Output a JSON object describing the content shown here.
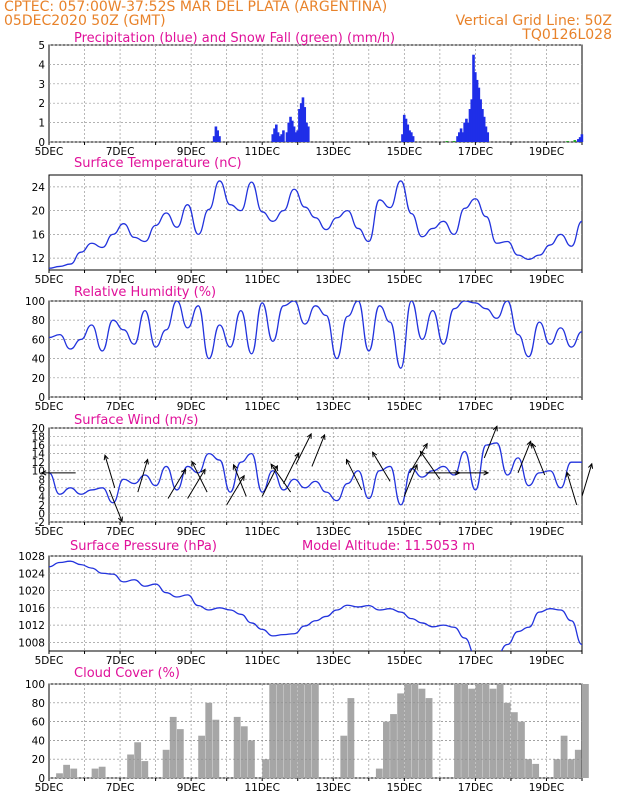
{
  "header": {
    "line1_left": "CPTEC:  057:00W-37:52S  MAR DEL PLATA (ARGENTINA)",
    "line2_left": "05DEC2020 50Z (GMT)",
    "line2_right": "Vertical Grid Line: 50Z",
    "line3_right": "TQ0126L028"
  },
  "colors": {
    "header": "#e8822a",
    "title": "#e0119a",
    "precip": "#1f2ee8",
    "snow": "#1ea51e",
    "line": "#2233dd",
    "cloud": "#a6a6a6"
  },
  "x_axis": {
    "labels": [
      "5DEC",
      "7DEC",
      "9DEC",
      "11DEC",
      "13DEC",
      "15DEC",
      "17DEC",
      "19DEC"
    ],
    "start_day": 5,
    "end_day": 20
  },
  "chart_data": [
    {
      "type": "bar",
      "title": "Precipitation (blue) and Snow Fall (green) (mm/h)",
      "ylim": [
        0,
        5
      ],
      "yticks": [
        0,
        1,
        2,
        3,
        4,
        5
      ],
      "series": [
        {
          "name": "Precipitation",
          "values": [
            [
              9.65,
              0.3
            ],
            [
              9.7,
              0.8
            ],
            [
              9.75,
              0.6
            ],
            [
              9.8,
              0.3
            ],
            [
              11.3,
              0.4
            ],
            [
              11.35,
              0.7
            ],
            [
              11.4,
              0.9
            ],
            [
              11.45,
              0.5
            ],
            [
              11.5,
              0.3
            ],
            [
              11.55,
              0.4
            ],
            [
              11.6,
              0.6
            ],
            [
              11.7,
              0.5
            ],
            [
              11.75,
              1.0
            ],
            [
              11.8,
              1.3
            ],
            [
              11.85,
              1.1
            ],
            [
              11.9,
              0.8
            ],
            [
              11.95,
              0.5
            ],
            [
              12.0,
              0.6
            ],
            [
              12.05,
              1.7
            ],
            [
              12.1,
              2.0
            ],
            [
              12.15,
              2.3
            ],
            [
              12.2,
              1.8
            ],
            [
              12.25,
              1.0
            ],
            [
              12.3,
              0.8
            ],
            [
              14.95,
              0.4
            ],
            [
              15.0,
              1.4
            ],
            [
              15.05,
              1.2
            ],
            [
              15.1,
              0.9
            ],
            [
              15.15,
              0.6
            ],
            [
              15.2,
              0.5
            ],
            [
              15.25,
              0.3
            ],
            [
              16.5,
              0.3
            ],
            [
              16.55,
              0.5
            ],
            [
              16.6,
              0.7
            ],
            [
              16.65,
              0.5
            ],
            [
              16.7,
              1.0
            ],
            [
              16.75,
              1.2
            ],
            [
              16.8,
              1.0
            ],
            [
              16.85,
              1.7
            ],
            [
              16.9,
              2.2
            ],
            [
              16.95,
              4.5
            ],
            [
              17.0,
              3.6
            ],
            [
              17.05,
              3.2
            ],
            [
              17.1,
              2.8
            ],
            [
              17.15,
              2.2
            ],
            [
              17.2,
              1.7
            ],
            [
              17.25,
              1.3
            ],
            [
              17.3,
              0.8
            ],
            [
              17.35,
              0.5
            ],
            [
              19.9,
              0.15
            ],
            [
              19.95,
              0.25
            ],
            [
              20.0,
              0.4
            ]
          ]
        },
        {
          "name": "Snow Fall",
          "values": [
            [
              16.2,
              0.05
            ],
            [
              16.4,
              0.05
            ],
            [
              19.6,
              0.05
            ],
            [
              19.8,
              0.1
            ]
          ]
        }
      ]
    },
    {
      "type": "line",
      "title": "Surface Temperature (nC)",
      "ylim": [
        10,
        26
      ],
      "yticks": [
        12,
        16,
        20,
        24
      ],
      "x": [
        5.0,
        5.3,
        5.6,
        5.9,
        6.2,
        6.5,
        6.8,
        7.1,
        7.4,
        7.7,
        8.0,
        8.3,
        8.6,
        8.9,
        9.2,
        9.5,
        9.8,
        10.1,
        10.4,
        10.7,
        11.0,
        11.3,
        11.6,
        11.9,
        12.2,
        12.5,
        12.8,
        13.1,
        13.4,
        13.7,
        14.0,
        14.3,
        14.6,
        14.9,
        15.2,
        15.5,
        15.8,
        16.1,
        16.4,
        16.7,
        17.0,
        17.3,
        17.6,
        17.9,
        18.2,
        18.5,
        18.8,
        19.1,
        19.4,
        19.7,
        20.0
      ],
      "values": [
        10.3,
        10.6,
        11.0,
        13.0,
        14.5,
        13.8,
        16.0,
        17.8,
        15.5,
        14.8,
        17.5,
        19.6,
        17.2,
        21.0,
        16.0,
        20.2,
        25.0,
        21.0,
        20.0,
        24.8,
        19.8,
        18.2,
        20.0,
        23.6,
        20.6,
        18.8,
        16.8,
        18.8,
        20.0,
        17.0,
        14.8,
        21.8,
        20.5,
        25.0,
        19.5,
        15.6,
        17.0,
        18.2,
        16.0,
        20.4,
        22.0,
        19.0,
        14.5,
        14.8,
        12.5,
        11.8,
        12.5,
        14.2,
        16.0,
        14.0,
        18.2
      ]
    },
    {
      "type": "line",
      "title": "Relative Humidity (%)",
      "ylim": [
        0,
        100
      ],
      "yticks": [
        0,
        20,
        40,
        60,
        80,
        100
      ],
      "x": [
        5.0,
        5.3,
        5.6,
        5.9,
        6.2,
        6.5,
        6.8,
        7.1,
        7.4,
        7.7,
        8.0,
        8.3,
        8.6,
        8.9,
        9.2,
        9.5,
        9.8,
        10.1,
        10.4,
        10.7,
        11.0,
        11.3,
        11.6,
        11.9,
        12.2,
        12.5,
        12.8,
        13.1,
        13.4,
        13.7,
        14.0,
        14.3,
        14.6,
        14.9,
        15.2,
        15.5,
        15.8,
        16.1,
        16.4,
        16.7,
        17.0,
        17.3,
        17.6,
        17.9,
        18.2,
        18.5,
        18.8,
        19.1,
        19.4,
        19.7,
        20.0
      ],
      "values": [
        62,
        65,
        50,
        60,
        75,
        48,
        80,
        70,
        55,
        90,
        52,
        70,
        100,
        72,
        95,
        40,
        75,
        52,
        90,
        45,
        98,
        58,
        95,
        100,
        76,
        95,
        85,
        40,
        84,
        100,
        48,
        95,
        78,
        30,
        100,
        60,
        90,
        55,
        92,
        100,
        98,
        92,
        82,
        100,
        65,
        42,
        78,
        55,
        72,
        52,
        68
      ]
    },
    {
      "type": "line",
      "title": "Surface Wind (m/s)",
      "ylim": [
        -2,
        20
      ],
      "yticks": [
        -2,
        0,
        2,
        4,
        6,
        8,
        10,
        12,
        14,
        16,
        18,
        20
      ],
      "x": [
        5.0,
        5.3,
        5.6,
        5.9,
        6.2,
        6.5,
        6.8,
        7.1,
        7.4,
        7.7,
        8.0,
        8.3,
        8.6,
        8.9,
        9.2,
        9.5,
        9.8,
        10.1,
        10.4,
        10.7,
        11.0,
        11.3,
        11.6,
        11.9,
        12.2,
        12.5,
        12.8,
        13.1,
        13.4,
        13.7,
        14.0,
        14.3,
        14.6,
        14.9,
        15.2,
        15.5,
        15.8,
        16.1,
        16.4,
        16.7,
        17.0,
        17.3,
        17.6,
        17.9,
        18.2,
        18.5,
        18.8,
        19.1,
        19.4,
        19.7,
        20.0
      ],
      "values": [
        9.5,
        4.5,
        6.0,
        4.5,
        5.5,
        6.0,
        2.5,
        8.0,
        7.0,
        9.0,
        6.5,
        11.0,
        5.5,
        11.0,
        9.5,
        14.0,
        12.5,
        5.0,
        12.0,
        14.0,
        5.0,
        10.0,
        5.5,
        8.0,
        6.0,
        7.5,
        5.0,
        3.0,
        7.0,
        10.0,
        3.5,
        10.0,
        11.0,
        2.0,
        10.5,
        8.5,
        10.0,
        11.0,
        9.0,
        14.5,
        5.5,
        16.0,
        16.5,
        9.0,
        13.0,
        6.5,
        9.5,
        10.0,
        6.0,
        12.0,
        12.0
      ],
      "arrows": [
        [
          5.75,
          9.5,
          -1,
          0
        ],
        [
          6.7,
          5.5,
          0.4,
          -1
        ],
        [
          6.85,
          6,
          -0.3,
          1
        ],
        [
          7.5,
          5,
          0.3,
          1
        ],
        [
          8.35,
          3.5,
          0.6,
          1
        ],
        [
          8.9,
          3.5,
          0.6,
          1
        ],
        [
          9.45,
          5,
          -0.5,
          1
        ],
        [
          10.0,
          2,
          0.6,
          1
        ],
        [
          10.55,
          4,
          -0.4,
          1
        ],
        [
          11.0,
          4,
          0.5,
          1
        ],
        [
          11.6,
          7,
          0.5,
          1
        ],
        [
          11.8,
          5,
          -0.7,
          1
        ],
        [
          11.95,
          11.5,
          0.5,
          1
        ],
        [
          12.4,
          11,
          0.4,
          1
        ],
        [
          13.8,
          5.5,
          -0.5,
          1
        ],
        [
          14.6,
          7.5,
          -0.6,
          1
        ],
        [
          15.0,
          4,
          0.4,
          1
        ],
        [
          15.15,
          9.5,
          0.6,
          1
        ],
        [
          15.6,
          9.5,
          1,
          0
        ],
        [
          16.0,
          8,
          -0.7,
          1
        ],
        [
          16.4,
          9.5,
          1,
          0
        ],
        [
          17.25,
          13,
          0.4,
          1
        ],
        [
          18.2,
          9.5,
          0.4,
          1
        ],
        [
          18.95,
          9,
          -0.4,
          1
        ],
        [
          19.85,
          2,
          -0.3,
          1
        ],
        [
          20.0,
          4,
          0.3,
          1
        ]
      ]
    },
    {
      "type": "line",
      "title": "Surface Pressure (hPa)",
      "subtitle": "Model Altitude: 11.5053 m",
      "ylim": [
        1006,
        1028
      ],
      "yticks": [
        1008,
        1012,
        1016,
        1020,
        1024,
        1028
      ],
      "x": [
        5.0,
        5.3,
        5.6,
        5.9,
        6.2,
        6.5,
        6.8,
        7.1,
        7.4,
        7.7,
        8.0,
        8.3,
        8.6,
        8.9,
        9.2,
        9.5,
        9.8,
        10.1,
        10.4,
        10.7,
        11.0,
        11.3,
        11.6,
        11.9,
        12.2,
        12.5,
        12.8,
        13.1,
        13.4,
        13.7,
        14.0,
        14.3,
        14.6,
        14.9,
        15.2,
        15.5,
        15.8,
        16.1,
        16.4,
        16.7,
        17.0,
        17.3,
        17.6,
        17.9,
        18.2,
        18.5,
        18.8,
        19.1,
        19.4,
        19.7,
        20.0
      ],
      "values": [
        1025.5,
        1026.5,
        1026.8,
        1026.0,
        1025.2,
        1024.0,
        1023.8,
        1022.0,
        1022.5,
        1021.0,
        1021.5,
        1019.5,
        1018.5,
        1019.0,
        1016.5,
        1015.5,
        1016.0,
        1015.5,
        1014.5,
        1012.5,
        1011.0,
        1009.5,
        1009.8,
        1010.0,
        1011.8,
        1013.0,
        1014.0,
        1015.5,
        1016.6,
        1016.2,
        1016.5,
        1015.5,
        1015.8,
        1015.0,
        1013.5,
        1012.5,
        1011.6,
        1012.0,
        1011.5,
        1009.0,
        1005.0,
        1003.5,
        1005.0,
        1007.5,
        1010.5,
        1011.5,
        1015.0,
        1015.8,
        1015.5,
        1013.0,
        1007.5
      ]
    },
    {
      "type": "area",
      "title": "Cloud Cover (%)",
      "ylim": [
        0,
        100
      ],
      "yticks": [
        0,
        20,
        40,
        60,
        80,
        100
      ],
      "x": [
        5.0,
        5.2,
        5.4,
        5.6,
        5.8,
        6.0,
        6.2,
        6.4,
        6.6,
        6.8,
        7.0,
        7.2,
        7.4,
        7.6,
        7.8,
        8.0,
        8.2,
        8.4,
        8.6,
        8.8,
        9.0,
        9.2,
        9.4,
        9.6,
        9.8,
        10.0,
        10.2,
        10.4,
        10.6,
        10.8,
        11.0,
        11.2,
        11.4,
        11.6,
        11.8,
        12.0,
        12.2,
        12.4,
        12.6,
        12.8,
        13.0,
        13.2,
        13.4,
        13.6,
        13.8,
        14.0,
        14.2,
        14.4,
        14.6,
        14.8,
        15.0,
        15.2,
        15.4,
        15.6,
        15.8,
        16.0,
        16.2,
        16.4,
        16.6,
        16.8,
        17.0,
        17.2,
        17.4,
        17.6,
        17.8,
        18.0,
        18.2,
        18.4,
        18.6,
        18.8,
        19.0,
        19.2,
        19.4,
        19.6,
        19.8,
        20.0
      ],
      "values": [
        0,
        5,
        14,
        10,
        0,
        0,
        10,
        12,
        0,
        0,
        0,
        25,
        38,
        18,
        0,
        0,
        30,
        65,
        52,
        0,
        0,
        45,
        80,
        62,
        0,
        0,
        65,
        55,
        40,
        0,
        20,
        100,
        100,
        100,
        100,
        100,
        100,
        100,
        0,
        0,
        0,
        45,
        85,
        0,
        0,
        0,
        10,
        60,
        68,
        90,
        100,
        100,
        95,
        85,
        0,
        0,
        0,
        100,
        100,
        95,
        100,
        100,
        95,
        100,
        80,
        70,
        60,
        20,
        15,
        0,
        0,
        20,
        45,
        20,
        30,
        100
      ]
    }
  ]
}
